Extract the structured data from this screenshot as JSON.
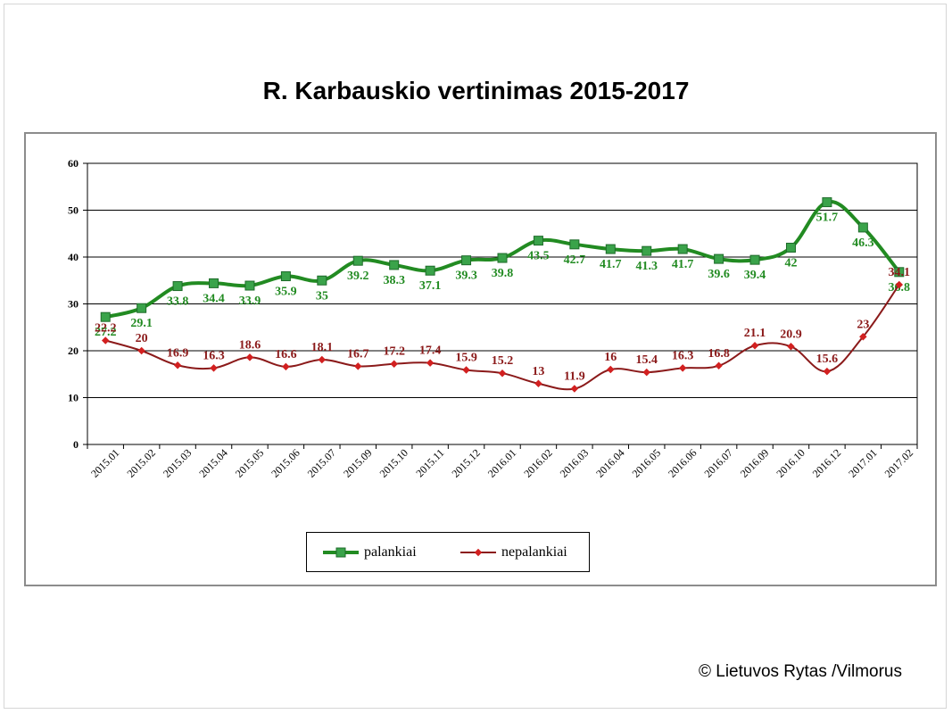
{
  "title": "R. Karbauskio  vertinimas  2015-2017",
  "credit": "© Lietuvos Rytas /Vilmorus",
  "colors": {
    "palankiai": "#228B22",
    "nepalankiai": "#8B1A1A",
    "palankiai_marker": "#3aa34a",
    "nepalankiai_marker": "#d22020"
  },
  "chart_data": {
    "type": "line",
    "title": "R. Karbauskio  vertinimas  2015-2017",
    "xlabel": "",
    "ylabel": "",
    "ylim": [
      0,
      60
    ],
    "yticks": [
      0,
      10,
      20,
      30,
      40,
      50,
      60
    ],
    "grid": "horizontal",
    "legend_position": "bottom-center",
    "categories": [
      "2015.01",
      "2015.02",
      "2015.03",
      "2015.04",
      "2015.05",
      "2015.06",
      "2015.07",
      "2015.09",
      "2015.10",
      "2015.11",
      "2015.12",
      "2016.01",
      "2016.02",
      "2016.03",
      "2016.04",
      "2016.05",
      "2016.06",
      "2016.07",
      "2016.09",
      "2016.10",
      "2016.12",
      "2017.01",
      "2017.02"
    ],
    "series": [
      {
        "name": "palankiai",
        "values": [
          27.2,
          29.1,
          33.8,
          34.4,
          33.9,
          35.9,
          35,
          39.2,
          38.3,
          37.1,
          39.3,
          39.8,
          43.5,
          42.7,
          41.7,
          41.3,
          41.7,
          39.6,
          39.4,
          42,
          51.7,
          46.3,
          36.8
        ]
      },
      {
        "name": "nepalankiai",
        "values": [
          22.2,
          20,
          16.9,
          16.3,
          18.6,
          16.6,
          18.1,
          16.7,
          17.2,
          17.4,
          15.9,
          15.2,
          13,
          11.9,
          16,
          15.4,
          16.3,
          16.8,
          21.1,
          20.9,
          15.6,
          23,
          34.1
        ]
      }
    ]
  }
}
